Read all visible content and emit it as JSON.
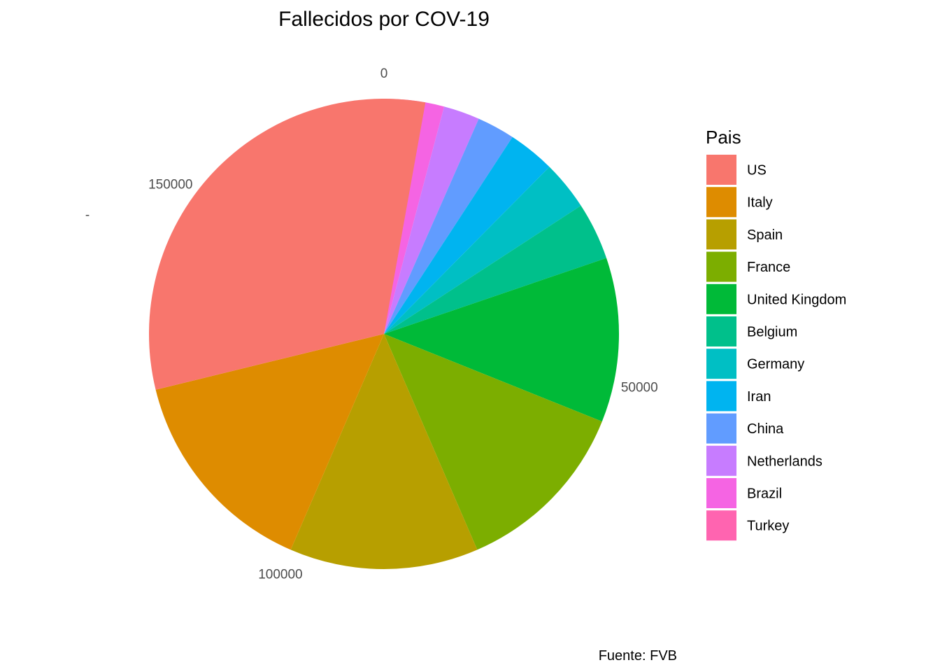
{
  "chart_data": {
    "type": "pie",
    "title": "Fallecidos por COV-19",
    "caption": "Fuente: FVB",
    "legend_title": "Pais",
    "legend_position": "right",
    "axis_ticks": [
      "0",
      "50000",
      "100000",
      "150000"
    ],
    "stray_tick_mark": "-",
    "axis_max": 177000,
    "slices": [
      {
        "label": "US",
        "value": 56000,
        "color": "#F8766D"
      },
      {
        "label": "Italy",
        "value": 26000,
        "color": "#DE8C00"
      },
      {
        "label": "Spain",
        "value": 23000,
        "color": "#B79F00"
      },
      {
        "label": "France",
        "value": 22000,
        "color": "#7CAE00"
      },
      {
        "label": "United Kingdom",
        "value": 20000,
        "color": "#00BA38"
      },
      {
        "label": "Belgium",
        "value": 7000,
        "color": "#00C08B"
      },
      {
        "label": "Germany",
        "value": 6000,
        "color": "#00BFC4"
      },
      {
        "label": "Iran",
        "value": 5700,
        "color": "#00B4F0"
      },
      {
        "label": "China",
        "value": 4600,
        "color": "#619CFF"
      },
      {
        "label": "Netherlands",
        "value": 4400,
        "color": "#C77CFF"
      },
      {
        "label": "Brazil",
        "value": 4400,
        "color": "#F564E3"
      },
      {
        "label": "Turkey",
        "value": 2900,
        "color": "#FF64B0"
      }
    ]
  }
}
